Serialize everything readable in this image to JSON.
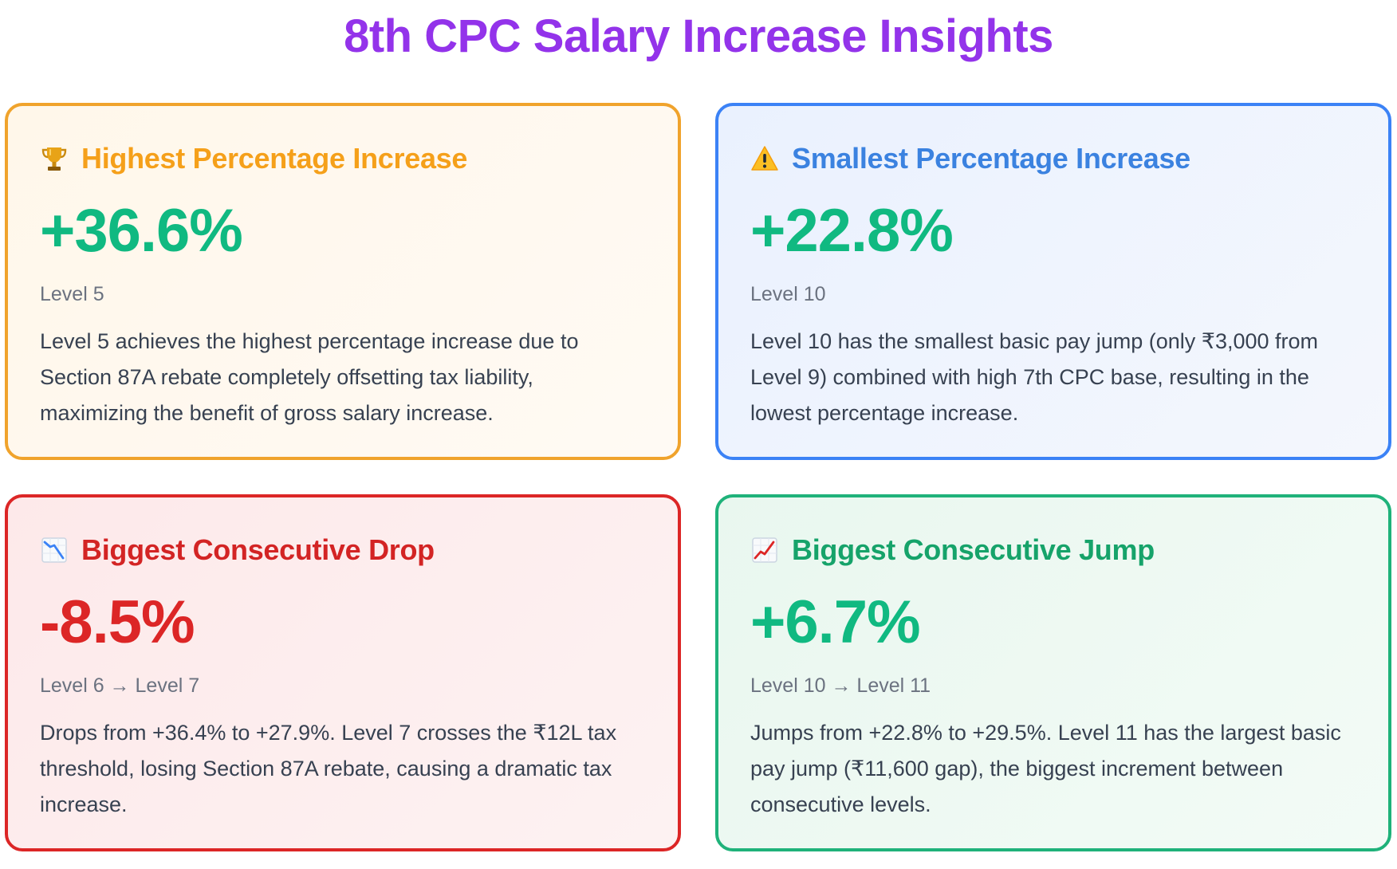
{
  "title": "8th CPC Salary Increase Insights",
  "colors": {
    "title": "#9333ea",
    "positive_value": "#10b981",
    "negative_value": "#dc2626"
  },
  "cards": [
    {
      "icon": "trophy-icon",
      "title": "Highest Percentage Increase",
      "value": "+36.6%",
      "subtitle": "Level 5",
      "description": "Level 5 achieves the highest percentage increase due to Section 87A rebate completely offsetting tax liability, maximizing the benefit of gross salary increase.",
      "border_color": "#f0a32c",
      "title_color": "#f5a01a",
      "value_color": "#10b981",
      "bg_from": "#fff7ea",
      "bg_to": "#fffaf4"
    },
    {
      "icon": "warning-icon",
      "title": "Smallest Percentage Increase",
      "value": "+22.8%",
      "subtitle": "Level 10",
      "description": "Level 10 has the smallest basic pay jump (only ₹3,000 from Level 9) combined with high 7th CPC base, resulting in the lowest percentage increase.",
      "border_color": "#3b82f6",
      "title_color": "#3b82e0",
      "value_color": "#10b981",
      "bg_from": "#eaf1fe",
      "bg_to": "#f4f7fd"
    },
    {
      "icon": "chart-decreasing-icon",
      "title": "Biggest Consecutive Drop",
      "value": "-8.5%",
      "subtitle": "Level 6 → Level 7",
      "description": "Drops from +36.4% to +27.9%. Level 7 crosses the ₹12L tax threshold, losing Section 87A rebate, causing a dramatic tax increase.",
      "border_color": "#dc2626",
      "title_color": "#d32424",
      "value_color": "#dc2626",
      "bg_from": "#fde9ea",
      "bg_to": "#fdf2f2"
    },
    {
      "icon": "chart-increasing-icon",
      "title": "Biggest Consecutive Jump",
      "value": "+6.7%",
      "subtitle": "Level 10 → Level 11",
      "description": "Jumps from +22.8% to +29.5%. Level 11 has the largest basic pay jump (₹11,600 gap), the biggest increment between consecutive levels.",
      "border_color": "#1fb27a",
      "title_color": "#16a36a",
      "value_color": "#10b981",
      "bg_from": "#e9f7ef",
      "bg_to": "#f3fbf6"
    }
  ]
}
